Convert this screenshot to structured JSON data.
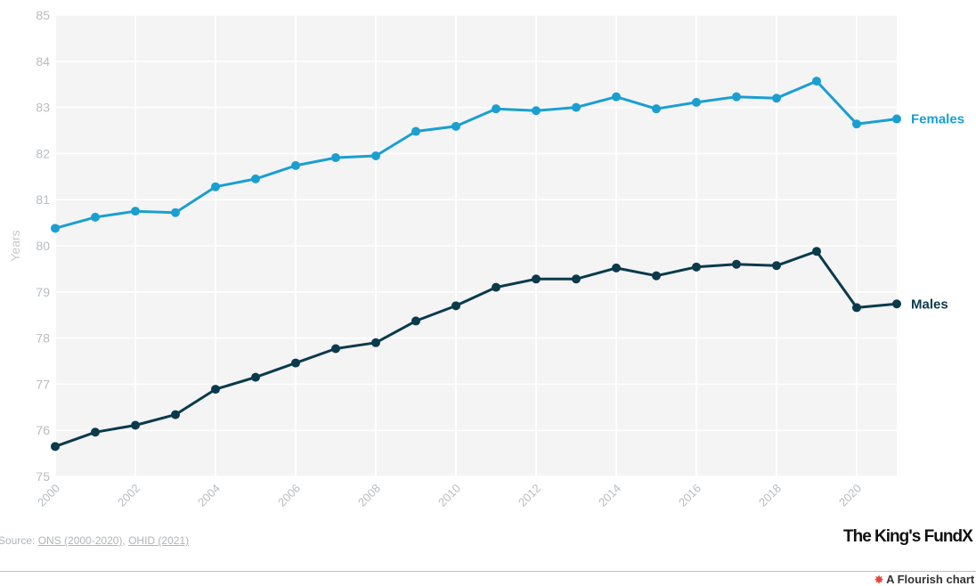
{
  "chart_data": {
    "type": "line",
    "ylabel": "Years",
    "ylim": [
      75,
      85
    ],
    "yticks": [
      "75",
      "76",
      "77",
      "78",
      "79",
      "80",
      "81",
      "82",
      "83",
      "84",
      "85"
    ],
    "xlim": [
      2000,
      2021
    ],
    "xticks": [
      "2000",
      "2002",
      "2004",
      "2006",
      "2008",
      "2010",
      "2012",
      "2014",
      "2016",
      "2018",
      "2020"
    ],
    "x": [
      2000,
      2001,
      2002,
      2003,
      2004,
      2005,
      2006,
      2007,
      2008,
      2009,
      2010,
      2011,
      2012,
      2013,
      2014,
      2015,
      2016,
      2017,
      2018,
      2019,
      2020,
      2021
    ],
    "series": [
      {
        "name": "Females",
        "color": "#1a9fd1",
        "values": [
          80.38,
          80.62,
          80.75,
          80.72,
          81.28,
          81.45,
          81.74,
          81.91,
          81.95,
          82.48,
          82.59,
          82.97,
          82.93,
          83.0,
          83.23,
          82.97,
          83.11,
          83.23,
          83.2,
          83.57,
          82.64,
          82.75
        ]
      },
      {
        "name": "Males",
        "color": "#0b3a4c",
        "values": [
          75.65,
          75.96,
          76.11,
          76.34,
          76.89,
          77.15,
          77.46,
          77.77,
          77.9,
          78.37,
          78.7,
          79.1,
          79.28,
          79.28,
          79.52,
          79.35,
          79.54,
          79.6,
          79.57,
          79.88,
          78.66,
          78.74
        ]
      }
    ],
    "grid": true
  },
  "source": {
    "prefix": "Source: ",
    "link1": "ONS (2000-2020)",
    "separator": ", ",
    "link2": "OHID (2021)"
  },
  "brand": "The King's Fund",
  "brand_mark": "X",
  "footer": {
    "icon": "flourish-star-icon",
    "text": "A Flourish chart"
  }
}
